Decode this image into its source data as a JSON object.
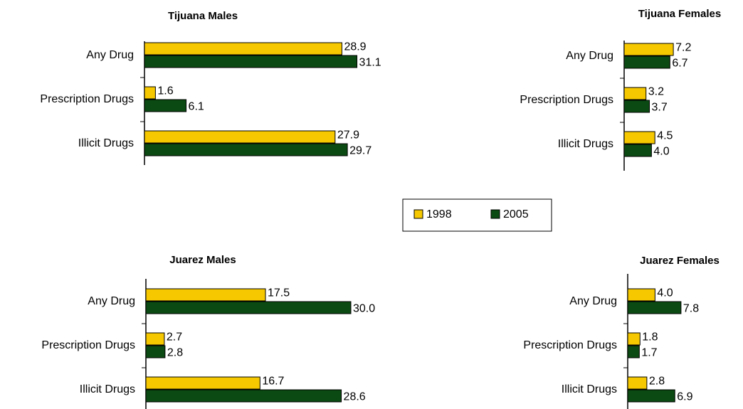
{
  "chart_data": [
    {
      "type": "bar",
      "orientation": "horizontal",
      "title": "Tijuana Males",
      "categories": [
        "Any Drug",
        "Prescription Drugs",
        "Illicit Drugs"
      ],
      "series": [
        {
          "name": "1998",
          "color": "#f5c800",
          "values": [
            28.9,
            1.6,
            27.9
          ],
          "value_labels": [
            "28.9",
            "1.6",
            "27.9"
          ]
        },
        {
          "name": "2005",
          "color": "#0b4a12",
          "values": [
            31.1,
            6.1,
            29.7
          ],
          "value_labels": [
            "31.1",
            "6.1",
            "29.7"
          ]
        }
      ]
    },
    {
      "type": "bar",
      "orientation": "horizontal",
      "title": "Tijuana Females",
      "categories": [
        "Any Drug",
        "Prescription Drugs",
        "Illicit Drugs"
      ],
      "series": [
        {
          "name": "1998",
          "color": "#f5c800",
          "values": [
            7.2,
            3.2,
            4.5
          ],
          "value_labels": [
            "7.2",
            "3.2",
            "4.5"
          ]
        },
        {
          "name": "2005",
          "color": "#0b4a12",
          "values": [
            6.7,
            3.7,
            4.0
          ],
          "value_labels": [
            "6.7",
            "3.7",
            "4.0"
          ]
        }
      ]
    },
    {
      "type": "bar",
      "orientation": "horizontal",
      "title": "Juarez Males",
      "categories": [
        "Any Drug",
        "Prescription Drugs",
        "Illicit Drugs"
      ],
      "series": [
        {
          "name": "1998",
          "color": "#f5c800",
          "values": [
            17.5,
            2.7,
            16.7
          ],
          "value_labels": [
            "17.5",
            "2.7",
            "16.7"
          ]
        },
        {
          "name": "2005",
          "color": "#0b4a12",
          "values": [
            30.0,
            2.8,
            28.6
          ],
          "value_labels": [
            "30.0",
            "2.8",
            "28.6"
          ]
        }
      ]
    },
    {
      "type": "bar",
      "orientation": "horizontal",
      "title": "Juarez Females",
      "categories": [
        "Any Drug",
        "Prescription Drugs",
        "Illicit Drugs"
      ],
      "series": [
        {
          "name": "1998",
          "color": "#f5c800",
          "values": [
            4.0,
            1.8,
            2.8
          ],
          "value_labels": [
            "4.0",
            "1.8",
            "2.8"
          ]
        },
        {
          "name": "2005",
          "color": "#0b4a12",
          "values": [
            7.8,
            1.7,
            6.9
          ],
          "value_labels": [
            "7.8",
            "1.7",
            "6.9"
          ]
        }
      ]
    }
  ]
}
